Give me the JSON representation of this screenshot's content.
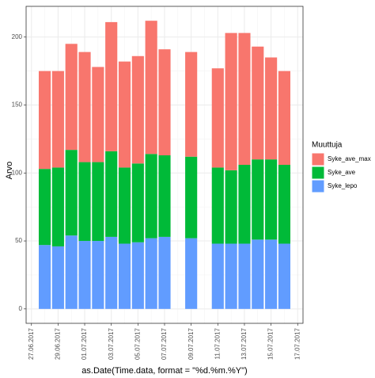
{
  "chart_data": {
    "type": "bar",
    "stacked": true,
    "x_label": "as.Date(Time.data, format = \"%d.%m.%Y\")",
    "y_label": "Arvo",
    "legend_title": "Muuttuja",
    "legend_position": "right",
    "grid": true,
    "x": [
      "28.06.2017",
      "29.06.2017",
      "30.06.2017",
      "01.07.2017",
      "02.07.2017",
      "03.07.2017",
      "04.07.2017",
      "05.07.2017",
      "06.07.2017",
      "07.07.2017",
      "09.07.2017",
      "11.07.2017",
      "12.07.2017",
      "13.07.2017",
      "14.07.2017",
      "15.07.2017",
      "16.07.2017"
    ],
    "series": [
      {
        "name": "Syke_ave_max",
        "color": "#F8766D",
        "values": [
          72,
          71,
          78,
          81,
          70,
          95,
          78,
          79,
          98,
          78,
          77,
          73,
          101,
          97,
          83,
          75,
          69
        ]
      },
      {
        "name": "Syke_ave",
        "color": "#00BA38",
        "values": [
          56,
          58,
          63,
          58,
          58,
          63,
          56,
          58,
          62,
          60,
          60,
          56,
          54,
          58,
          59,
          59,
          58
        ]
      },
      {
        "name": "Syke_lepo",
        "color": "#619CFF",
        "values": [
          47,
          46,
          54,
          50,
          50,
          53,
          48,
          49,
          52,
          53,
          52,
          48,
          48,
          48,
          51,
          51,
          48
        ]
      }
    ],
    "xlim": [
      "27.06.2017",
      "17.07.2017"
    ],
    "xticks": [
      "27.06.2017",
      "29.06.2017",
      "01.07.2017",
      "03.07.2017",
      "05.07.2017",
      "07.07.2017",
      "09.07.2017",
      "11.07.2017",
      "13.07.2017",
      "15.07.2017",
      "17.07.2017"
    ],
    "ylim": [
      -10.6,
      222.6
    ],
    "yticks": [
      0,
      50,
      100,
      150,
      200
    ]
  }
}
